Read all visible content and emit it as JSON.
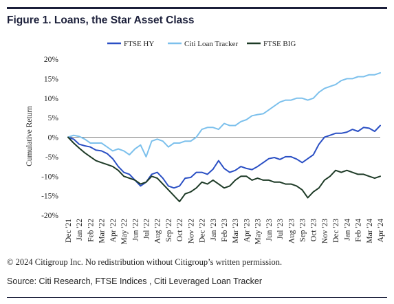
{
  "title": "Figure 1. Loans, the Star Asset Class",
  "copyright": "© 2024 Citigroup Inc. No redistribution without Citigroup’s written permission.",
  "source": "Source: Citi Research, FTSE Indices , Citi Leveraged Loan Tracker",
  "chart_data": {
    "type": "line",
    "ylabel": "Cumulative Return",
    "xlabel": "",
    "ylim": [
      -20,
      20
    ],
    "y_ticks": [
      20,
      15,
      10,
      5,
      0,
      -5,
      -10,
      -15,
      -20
    ],
    "y_tick_labels": [
      "20%",
      "15%",
      "10%",
      "5%",
      "0%",
      "-5%",
      "-10%",
      "-15%",
      "-20%"
    ],
    "x_tick_labels": [
      "Dec '21",
      "Jan '22",
      "Feb '22",
      "Mar '22",
      "Apr '22",
      "May '22",
      "Jun '22",
      "Jul '22",
      "Aug '22",
      "Sep '22",
      "Oct '22",
      "Nov '22",
      "Dec '22",
      "Jan '23",
      "Feb '23",
      "Mar '23",
      "Apr '23",
      "May '23",
      "Jun '23",
      "Jul '23",
      "Aug '23",
      "Sep '23",
      "Oct '23",
      "Nov '23",
      "Dec '23",
      "Jan '24",
      "Feb '24",
      "Mar '24",
      "Apr '24"
    ],
    "legend_position": "top",
    "grid": false,
    "x_months": [
      0,
      0.5,
      1,
      1.5,
      2,
      2.5,
      3,
      3.5,
      4,
      4.5,
      5,
      5.5,
      6,
      6.5,
      7,
      7.5,
      8,
      8.5,
      9,
      9.5,
      10,
      10.5,
      11,
      11.5,
      12,
      12.5,
      13,
      13.5,
      14,
      14.5,
      15,
      15.5,
      16,
      16.5,
      17,
      17.5,
      18,
      18.5,
      19,
      19.5,
      20,
      20.5,
      21,
      21.5,
      22,
      22.5,
      23,
      23.5,
      24,
      24.5,
      25,
      25.5,
      26,
      26.5,
      27,
      27.5,
      28
    ],
    "series": [
      {
        "name": "FTSE HY",
        "color": "#2a4fc4",
        "values": [
          0,
          -0.5,
          -1.8,
          -2.2,
          -2.5,
          -3.3,
          -3.5,
          -4.2,
          -5.5,
          -7.5,
          -9,
          -9.5,
          -11,
          -12.5,
          -11.5,
          -9.5,
          -9,
          -10.5,
          -12.5,
          -13,
          -12.5,
          -10.5,
          -10.3,
          -9,
          -9,
          -9.5,
          -8.2,
          -6,
          -8,
          -9,
          -8.5,
          -7.5,
          -8,
          -8.3,
          -7.5,
          -6.5,
          -5.5,
          -5.2,
          -5.7,
          -5,
          -5,
          -5.6,
          -6.5,
          -5.5,
          -4.5,
          -1.8,
          0,
          0.5,
          1,
          1,
          1.3,
          2,
          1.5,
          2.5,
          2.3,
          1.5,
          3
        ]
      },
      {
        "name": "Citi Loan Tracker",
        "color": "#7cc0ec",
        "values": [
          0,
          0.5,
          0.2,
          -0.5,
          -1.5,
          -1.5,
          -1.5,
          -2.5,
          -3.5,
          -3,
          -3.5,
          -4.5,
          -3,
          -2,
          -5,
          -1,
          -0.5,
          -1,
          -2.5,
          -1.5,
          -1.5,
          -1,
          -1,
          0,
          2,
          2.5,
          2.5,
          2,
          3.5,
          3,
          3,
          4,
          4.5,
          5.5,
          5.8,
          6,
          7,
          8,
          9,
          9.5,
          9.5,
          10,
          10,
          9.5,
          10,
          11.5,
          12.5,
          13,
          13.5,
          14.5,
          15,
          15,
          15.5,
          15.5,
          16,
          16,
          16.5
        ]
      },
      {
        "name": "FTSE BIG",
        "color": "#1d3a26",
        "values": [
          0,
          -1.5,
          -2.8,
          -4,
          -5,
          -6,
          -6.5,
          -7,
          -7.5,
          -8.5,
          -10,
          -10.5,
          -11,
          -12,
          -11.5,
          -10,
          -10.5,
          -12,
          -13.5,
          -15,
          -16.5,
          -14.5,
          -14,
          -13,
          -11.5,
          -12,
          -11,
          -12,
          -13,
          -12.5,
          -11,
          -10,
          -10,
          -11,
          -10.5,
          -11,
          -11,
          -11.5,
          -11.5,
          -12,
          -12,
          -12.5,
          -13.5,
          -15.5,
          -14,
          -13,
          -11,
          -10,
          -8.5,
          -9,
          -8.5,
          -9,
          -9.5,
          -9.5,
          -10,
          -10.5,
          -10
        ]
      }
    ]
  }
}
